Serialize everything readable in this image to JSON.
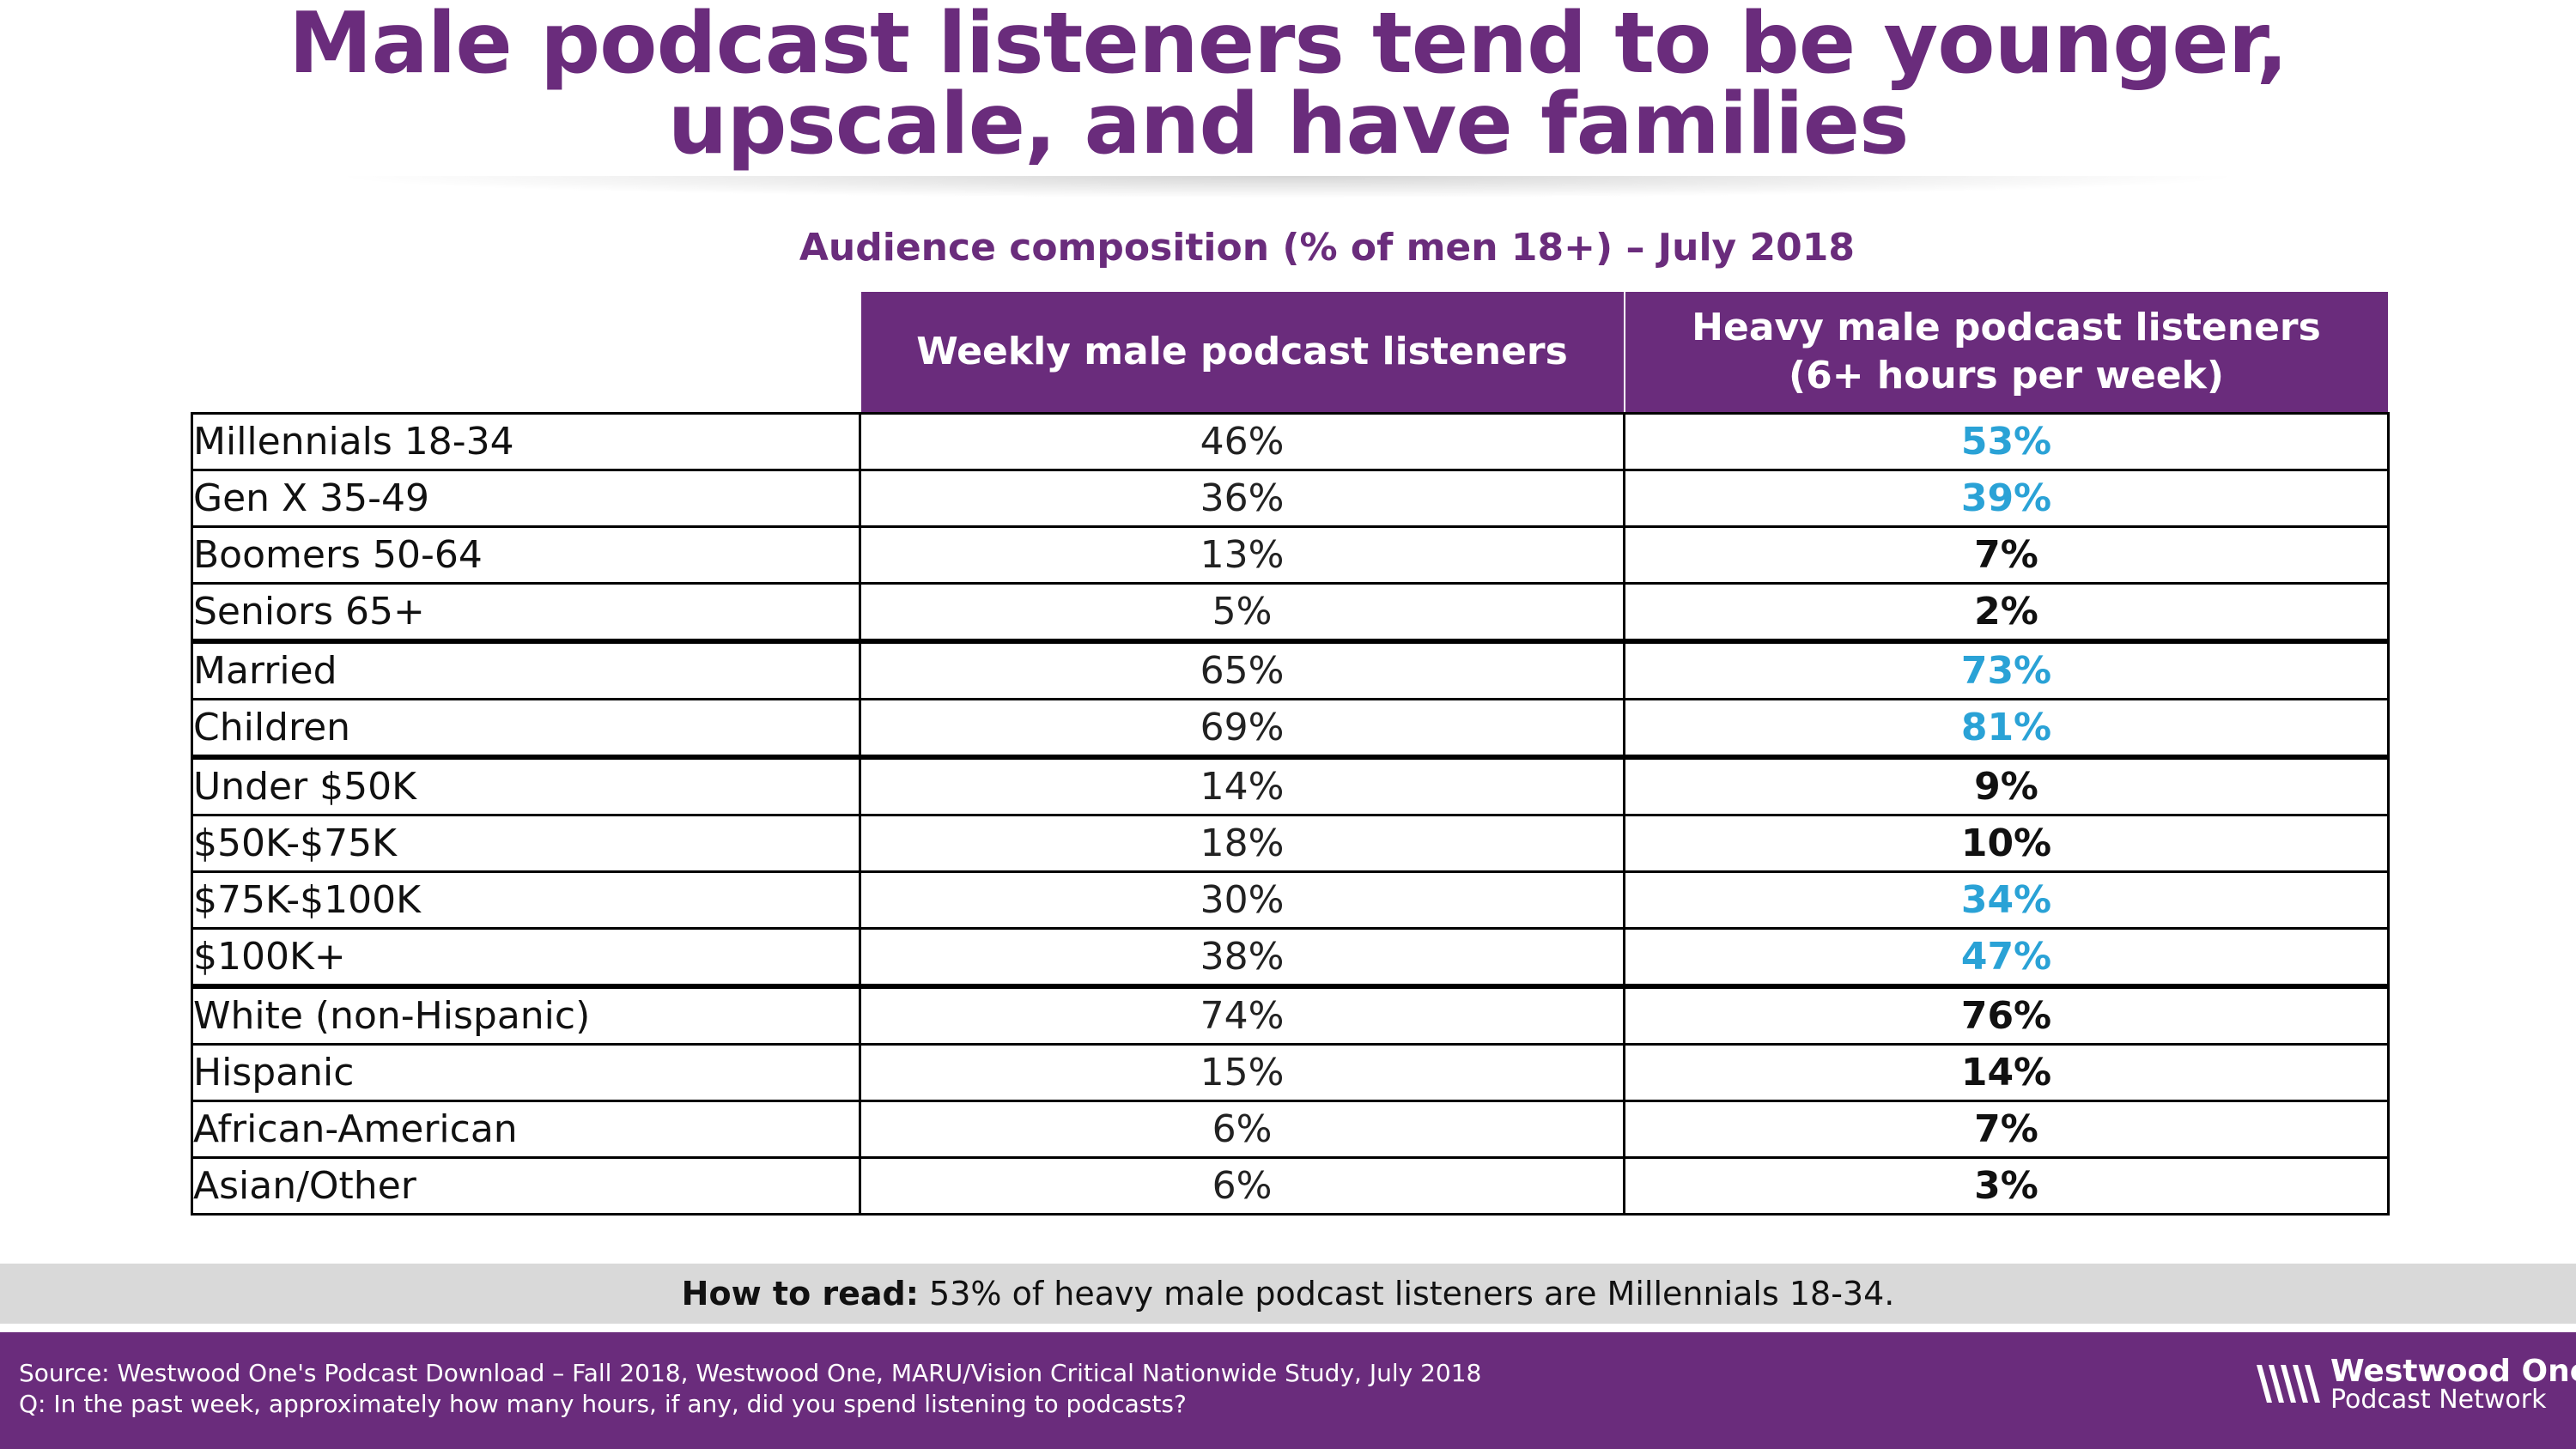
{
  "title": {
    "line1": "Male podcast listeners tend to be younger,",
    "line2": "upscale, and have families"
  },
  "chart_data": {
    "type": "table",
    "subtitle": "Audience composition (% of men 18+) – July 2018",
    "columns": [
      "Weekly male podcast listeners",
      "Heavy male podcast listeners",
      "(6+ hours per week)"
    ],
    "rows": [
      {
        "label": "Millennials 18-34",
        "weekly": "46%",
        "heavy": "53%",
        "highlight": true,
        "group_start": false
      },
      {
        "label": "Gen X 35-49",
        "weekly": "36%",
        "heavy": "39%",
        "highlight": true,
        "group_start": false
      },
      {
        "label": "Boomers 50-64",
        "weekly": "13%",
        "heavy": "7%",
        "highlight": false,
        "group_start": false
      },
      {
        "label": "Seniors 65+",
        "weekly": "5%",
        "heavy": "2%",
        "highlight": false,
        "group_start": false
      },
      {
        "label": "Married",
        "weekly": "65%",
        "heavy": "73%",
        "highlight": true,
        "group_start": true
      },
      {
        "label": "Children",
        "weekly": "69%",
        "heavy": "81%",
        "highlight": true,
        "group_start": false
      },
      {
        "label": "Under $50K",
        "weekly": "14%",
        "heavy": "9%",
        "highlight": false,
        "group_start": true
      },
      {
        "label": "$50K-$75K",
        "weekly": "18%",
        "heavy": "10%",
        "highlight": false,
        "group_start": false
      },
      {
        "label": "$75K-$100K",
        "weekly": "30%",
        "heavy": "34%",
        "highlight": true,
        "group_start": false
      },
      {
        "label": "$100K+",
        "weekly": "38%",
        "heavy": "47%",
        "highlight": true,
        "group_start": false
      },
      {
        "label": "White (non-Hispanic)",
        "weekly": "74%",
        "heavy": "76%",
        "highlight": false,
        "group_start": true
      },
      {
        "label": "Hispanic",
        "weekly": "15%",
        "heavy": "14%",
        "highlight": false,
        "group_start": false
      },
      {
        "label": "African-American",
        "weekly": "6%",
        "heavy": "7%",
        "highlight": false,
        "group_start": false
      },
      {
        "label": "Asian/Other",
        "weekly": "6%",
        "heavy": "3%",
        "highlight": false,
        "group_start": false
      }
    ]
  },
  "how_to_read": {
    "label": "How to read:",
    "text": " 53% of heavy male podcast listeners are Millennials 18-34."
  },
  "footer": {
    "source": "Source: Westwood One's Podcast Download – Fall 2018, Westwood One, MARU/Vision Critical Nationwide Study, July 2018",
    "question": "Q: In the past week, approximately how many hours, if any, did you spend listening to podcasts?",
    "logo_line1": "Westwood One",
    "logo_line2": "Podcast Network"
  },
  "colors": {
    "purple": "#6a2c7c",
    "highlight": "#2aa2d6"
  }
}
